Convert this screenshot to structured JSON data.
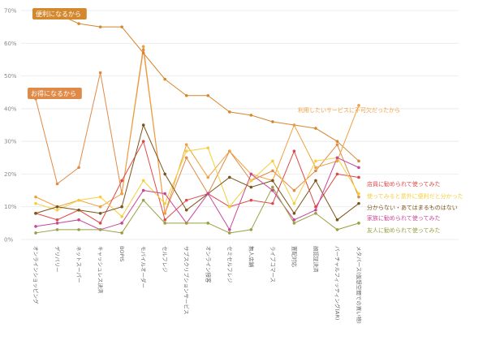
{
  "chart_data": {
    "type": "line",
    "ylim": [
      0,
      70
    ],
    "yticks": [
      "0%",
      "10%",
      "20%",
      "30%",
      "40%",
      "50%",
      "60%",
      "70%"
    ],
    "grid": true,
    "categories": [
      "オンラインショッピング",
      "デリバリー",
      "ネットスーパー",
      "キャッシュレス決済",
      "BOPIS",
      "モバイルオーダー",
      "セルフレジ",
      "サブスクリプションサービス",
      "オンライン接客",
      "セミセルフレジ",
      "無人店舗",
      "ライブコマース",
      "置配対応",
      "顔認証決済",
      "バーチャルフィッティング(AR)",
      "メタバース(仮想空間での買い物)"
    ],
    "series": [
      {
        "name": "便利になるから",
        "color": "#d4882e",
        "values": [
          70,
          69,
          66,
          65,
          65,
          57,
          49,
          44,
          44,
          39,
          38,
          36,
          35,
          34,
          30,
          24
        ],
        "label_style": "tag"
      },
      {
        "name": "お得になるから",
        "color": "#e08a47",
        "values": [
          43,
          17,
          22,
          51,
          14,
          58,
          8,
          25,
          14,
          27,
          18,
          21,
          15,
          21,
          29,
          13
        ],
        "label_style": "tag"
      },
      {
        "name": "利用したいサービスに不可欠だったから",
        "color": "#f0a040",
        "values": [
          13,
          10,
          12,
          10,
          14,
          59,
          8,
          29,
          19,
          27,
          20,
          18,
          35,
          22,
          24,
          41
        ],
        "label_style": "text"
      },
      {
        "name": "店員に勧められて使ってみた",
        "color": "#e04848",
        "values": [
          8,
          6,
          9,
          5,
          18,
          30,
          6,
          12,
          14,
          10,
          12,
          11,
          27,
          10,
          20,
          19
        ],
        "label_style": "text"
      },
      {
        "name": "使ってみると意外に便利だと分かった",
        "color": "#f5cf3a",
        "values": [
          11,
          9,
          12,
          13,
          7,
          18,
          11,
          27,
          28,
          10,
          18,
          24,
          11,
          24,
          25,
          14
        ],
        "label_style": "text"
      },
      {
        "name": "分からない・あてはまるものはない",
        "color": "#7a5418",
        "values": [
          8,
          10,
          9,
          8,
          10,
          35,
          20,
          9,
          14,
          19,
          16,
          18,
          8,
          18,
          6,
          11
        ],
        "label_style": "text"
      },
      {
        "name": "家族に勧められて使ってみた",
        "color": "#c84898",
        "values": [
          4,
          5,
          6,
          3,
          5,
          15,
          14,
          5,
          14,
          3,
          20,
          15,
          6,
          9,
          25,
          22
        ],
        "label_style": "text"
      },
      {
        "name": "友人に勧められて使ってみた",
        "color": "#9aa040",
        "values": [
          2,
          3,
          3,
          3,
          2,
          12,
          5,
          5,
          5,
          2,
          3,
          16,
          5,
          8,
          3,
          5
        ],
        "label_style": "text"
      }
    ]
  }
}
